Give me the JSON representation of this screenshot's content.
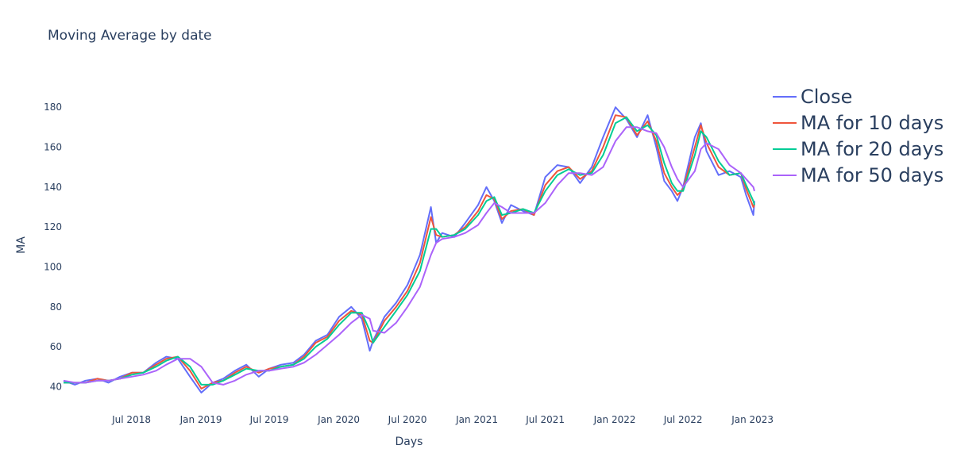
{
  "chart_data": {
    "type": "line",
    "title": "Moving Average by date",
    "xlabel": "Days",
    "ylabel": "MA",
    "xlim": [
      "2018-01-02",
      "2023-01-06"
    ],
    "ylim": [
      33,
      190
    ],
    "grid": false,
    "legend_position": "right",
    "x_ticks": [
      {
        "date": "2018-07-01",
        "label": "Jul 2018"
      },
      {
        "date": "2019-01-01",
        "label": "Jan 2019"
      },
      {
        "date": "2019-07-01",
        "label": "Jul 2019"
      },
      {
        "date": "2020-01-01",
        "label": "Jan 2020"
      },
      {
        "date": "2020-07-01",
        "label": "Jul 2020"
      },
      {
        "date": "2021-01-01",
        "label": "Jan 2021"
      },
      {
        "date": "2021-07-01",
        "label": "Jul 2021"
      },
      {
        "date": "2022-01-01",
        "label": "Jan 2022"
      },
      {
        "date": "2022-07-01",
        "label": "Jul 2022"
      },
      {
        "date": "2023-01-01",
        "label": "Jan 2023"
      }
    ],
    "y_ticks": [
      40,
      60,
      80,
      100,
      120,
      140,
      160,
      180
    ],
    "x": [
      "2018-01-02",
      "2018-02-01",
      "2018-03-01",
      "2018-04-02",
      "2018-05-01",
      "2018-06-01",
      "2018-07-02",
      "2018-08-01",
      "2018-09-04",
      "2018-10-01",
      "2018-11-01",
      "2018-12-03",
      "2019-01-02",
      "2019-02-01",
      "2019-03-01",
      "2019-04-01",
      "2019-05-01",
      "2019-06-03",
      "2019-07-01",
      "2019-08-01",
      "2019-09-03",
      "2019-10-01",
      "2019-11-01",
      "2019-12-02",
      "2020-01-02",
      "2020-02-03",
      "2020-03-02",
      "2020-03-23",
      "2020-04-01",
      "2020-05-01",
      "2020-06-01",
      "2020-07-01",
      "2020-08-03",
      "2020-09-01",
      "2020-09-15",
      "2020-10-01",
      "2020-11-02",
      "2020-12-01",
      "2021-01-04",
      "2021-01-26",
      "2021-02-16",
      "2021-03-08",
      "2021-04-01",
      "2021-05-03",
      "2021-06-01",
      "2021-07-01",
      "2021-08-02",
      "2021-09-01",
      "2021-10-01",
      "2021-11-01",
      "2021-12-01",
      "2022-01-03",
      "2022-02-01",
      "2022-03-01",
      "2022-03-29",
      "2022-04-21",
      "2022-05-12",
      "2022-06-01",
      "2022-06-16",
      "2022-07-01",
      "2022-08-01",
      "2022-08-17",
      "2022-09-01",
      "2022-10-03",
      "2022-11-01",
      "2022-12-01",
      "2022-12-15",
      "2023-01-03",
      "2023-01-06"
    ],
    "series": [
      {
        "name": "Close",
        "color": "#636efa",
        "values": [
          43,
          41,
          43,
          44,
          42,
          45,
          47,
          47,
          52,
          55,
          54,
          45,
          37,
          42,
          44,
          48,
          51,
          45,
          49,
          51,
          52,
          56,
          63,
          66,
          75,
          80,
          74,
          58,
          63,
          75,
          82,
          91,
          106,
          130,
          112,
          117,
          115,
          122,
          131,
          140,
          133,
          122,
          131,
          128,
          126,
          145,
          151,
          150,
          142,
          150,
          165,
          180,
          174,
          165,
          176,
          160,
          143,
          138,
          133,
          140,
          165,
          172,
          158,
          146,
          148,
          145,
          136,
          126,
          133
        ]
      },
      {
        "name": "MA for 10 days",
        "color": "#ef553b",
        "values": [
          42,
          42,
          42,
          44,
          43,
          44,
          47,
          47,
          51,
          54,
          55,
          48,
          39,
          42,
          43,
          47,
          50,
          47,
          49,
          50,
          51,
          55,
          62,
          65,
          73,
          78,
          76,
          63,
          62,
          73,
          80,
          88,
          102,
          125,
          116,
          115,
          116,
          120,
          128,
          136,
          134,
          124,
          128,
          129,
          126,
          141,
          148,
          150,
          144,
          148,
          160,
          176,
          175,
          166,
          173,
          163,
          147,
          140,
          136,
          139,
          160,
          171,
          162,
          150,
          146,
          147,
          139,
          130,
          131
        ]
      },
      {
        "name": "MA for 20 days",
        "color": "#00cc96",
        "values": [
          42,
          42,
          42,
          43,
          43,
          44,
          46,
          47,
          50,
          53,
          55,
          50,
          41,
          41,
          43,
          46,
          49,
          48,
          48,
          50,
          51,
          54,
          60,
          64,
          71,
          77,
          77,
          68,
          62,
          70,
          78,
          86,
          98,
          119,
          119,
          115,
          116,
          119,
          126,
          133,
          135,
          126,
          127,
          129,
          127,
          138,
          146,
          149,
          146,
          147,
          156,
          172,
          175,
          168,
          171,
          166,
          152,
          142,
          138,
          138,
          156,
          168,
          165,
          153,
          146,
          147,
          141,
          133,
          131
        ]
      },
      {
        "name": "MA for 50 days",
        "color": "#ab63fa",
        "values": [
          43,
          42,
          42,
          43,
          43,
          44,
          45,
          46,
          48,
          51,
          54,
          54,
          50,
          42,
          41,
          43,
          46,
          48,
          48,
          49,
          50,
          52,
          56,
          61,
          66,
          72,
          76,
          74,
          68,
          67,
          72,
          80,
          90,
          106,
          112,
          114,
          115,
          117,
          121,
          127,
          132,
          130,
          127,
          127,
          127,
          132,
          141,
          147,
          147,
          146,
          150,
          163,
          170,
          170,
          168,
          167,
          160,
          150,
          144,
          140,
          148,
          159,
          162,
          159,
          151,
          147,
          144,
          140,
          138
        ]
      }
    ]
  }
}
